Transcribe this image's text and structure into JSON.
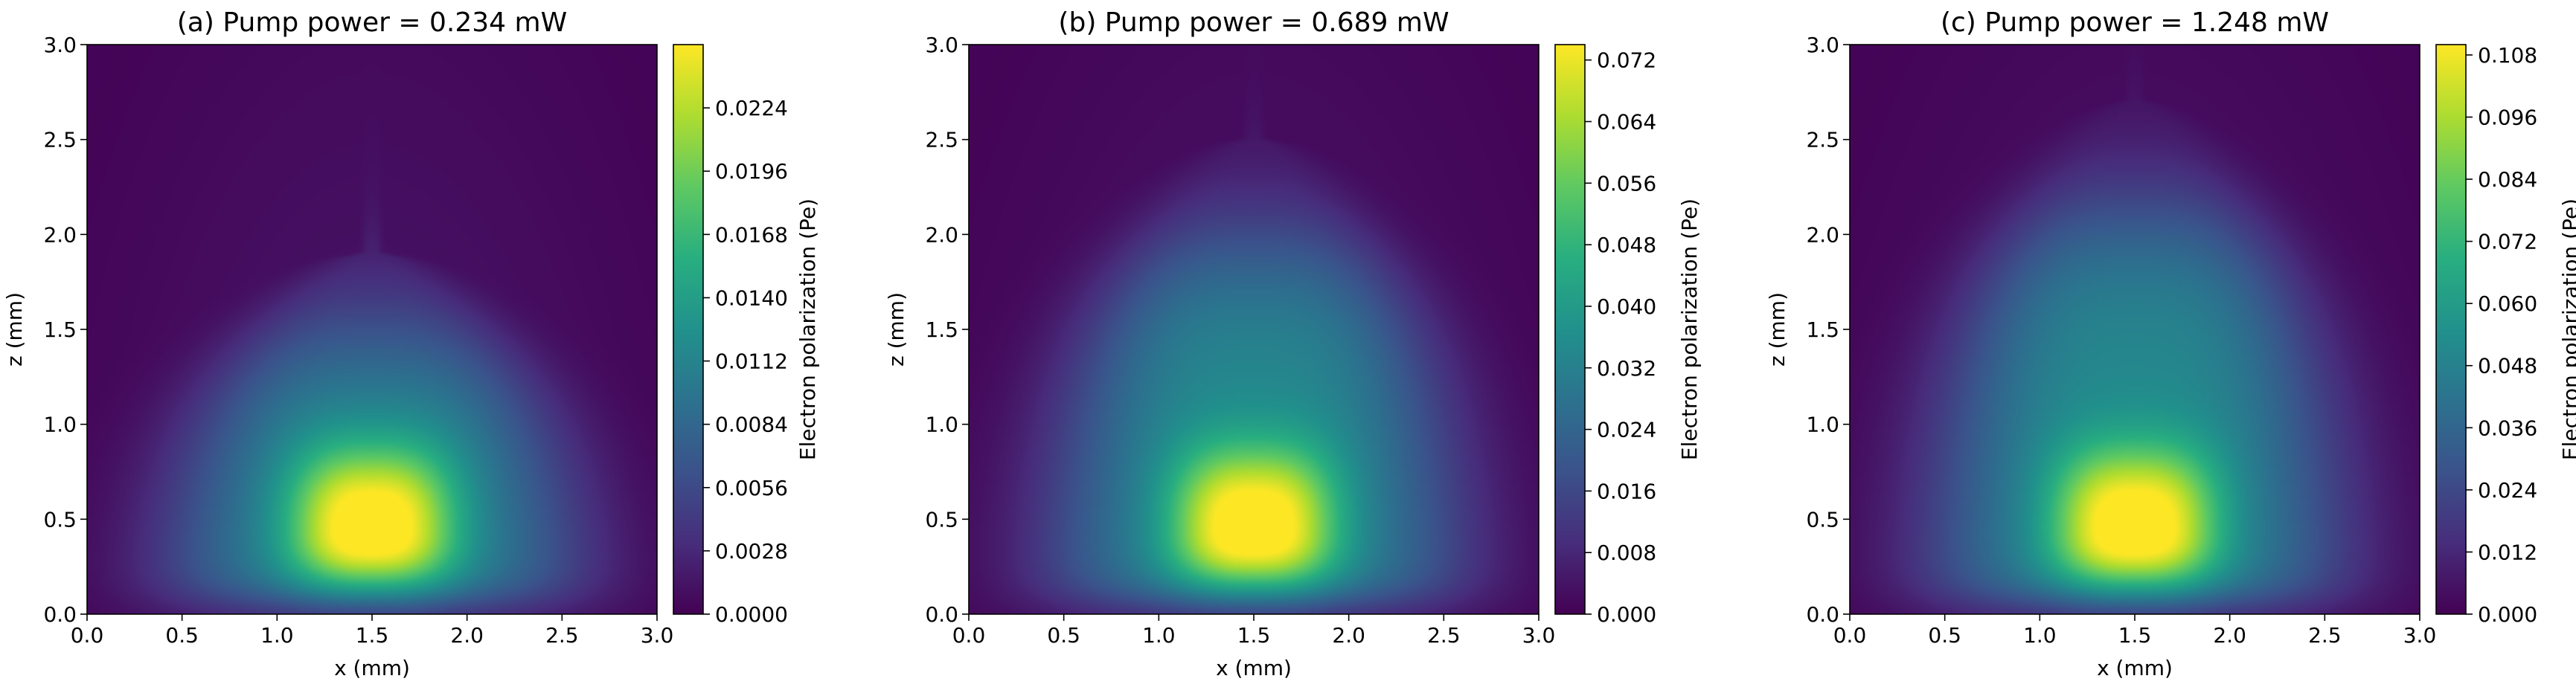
{
  "chart_data": [
    {
      "type": "heatmap",
      "title": "(a)  Pump power = 0.234 mW",
      "xlabel": "x (mm)",
      "ylabel": "z (mm)",
      "colorbar_label": "Electron polarization (Pe)",
      "xlim": [
        0.0,
        3.0
      ],
      "ylim": [
        0.0,
        3.0
      ],
      "x_ticks": [
        "0.0",
        "0.5",
        "1.0",
        "1.5",
        "2.0",
        "2.5",
        "3.0"
      ],
      "y_ticks": [
        "0.0",
        "0.5",
        "1.0",
        "1.5",
        "2.0",
        "2.5",
        "3.0"
      ],
      "colorbar_range": [
        0.0,
        0.0252
      ],
      "colorbar_ticks": [
        "0.0000",
        "0.0028",
        "0.0056",
        "0.0084",
        "0.0112",
        "0.0140",
        "0.0168",
        "0.0196",
        "0.0224"
      ],
      "peak_location": [
        1.5,
        0.45
      ],
      "peak_value": 0.0252,
      "plume_top_z": 1.9,
      "colormap": "viridis",
      "grid": false
    },
    {
      "type": "heatmap",
      "title": "(b)  Pump power = 0.689 mW",
      "xlabel": "x (mm)",
      "ylabel": "z (mm)",
      "colorbar_label": "Electron polarization (Pe)",
      "xlim": [
        0.0,
        3.0
      ],
      "ylim": [
        0.0,
        3.0
      ],
      "x_ticks": [
        "0.0",
        "0.5",
        "1.0",
        "1.5",
        "2.0",
        "2.5",
        "3.0"
      ],
      "y_ticks": [
        "0.0",
        "0.5",
        "1.0",
        "1.5",
        "2.0",
        "2.5",
        "3.0"
      ],
      "colorbar_range": [
        0.0,
        0.074
      ],
      "colorbar_ticks": [
        "0.000",
        "0.008",
        "0.016",
        "0.024",
        "0.032",
        "0.040",
        "0.048",
        "0.056",
        "0.064",
        "0.072"
      ],
      "peak_location": [
        1.5,
        0.45
      ],
      "peak_value": 0.074,
      "plume_top_z": 2.5,
      "colormap": "viridis",
      "grid": false
    },
    {
      "type": "heatmap",
      "title": "(c)  Pump power = 1.248 mW",
      "xlabel": "x (mm)",
      "ylabel": "z (mm)",
      "colorbar_label": "Electron polarization (Pe)",
      "xlim": [
        0.0,
        3.0
      ],
      "ylim": [
        0.0,
        3.0
      ],
      "x_ticks": [
        "0.0",
        "0.5",
        "1.0",
        "1.5",
        "2.0",
        "2.5",
        "3.0"
      ],
      "y_ticks": [
        "0.0",
        "0.5",
        "1.0",
        "1.5",
        "2.0",
        "2.5",
        "3.0"
      ],
      "colorbar_range": [
        0.0,
        0.11
      ],
      "colorbar_ticks": [
        "0.000",
        "0.012",
        "0.024",
        "0.036",
        "0.048",
        "0.060",
        "0.072",
        "0.084",
        "0.096",
        "0.108"
      ],
      "peak_location": [
        1.5,
        0.45
      ],
      "peak_value": 0.11,
      "plume_top_z": 2.7,
      "colormap": "viridis",
      "grid": false
    }
  ]
}
